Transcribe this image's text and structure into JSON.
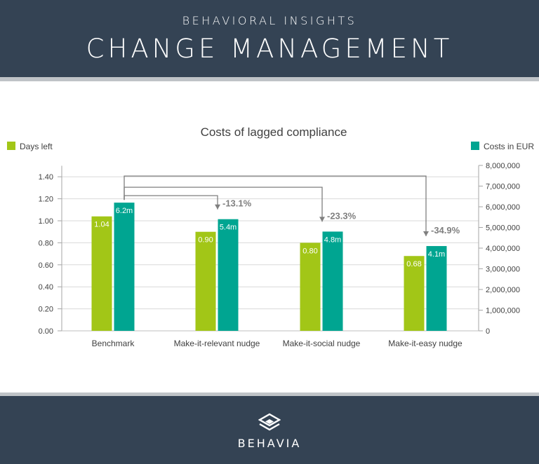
{
  "header": {
    "subtitle": "BEHAVIORAL INSIGHTS",
    "title": "CHANGE MANAGEMENT"
  },
  "footer": {
    "brand": "BEHAVIA"
  },
  "colors": {
    "days": "#a2c617",
    "costs": "#00a591",
    "bar_label": "#ffffff",
    "bracket": "#7f7f7f",
    "header_bg": "#344354"
  },
  "chart_data": {
    "type": "bar",
    "title": "Costs of lagged compliance",
    "categories": [
      "Benchmark",
      "Make-it-relevant nudge",
      "Make-it-social nudge",
      "Make-it-easy nudge"
    ],
    "series": [
      {
        "name": "Days left",
        "axis": "left",
        "values": [
          1.04,
          0.9,
          0.8,
          0.68
        ],
        "labels": [
          "1.04",
          "0.90",
          "0.80",
          "0.68"
        ]
      },
      {
        "name": "Costs in EUR",
        "axis": "right",
        "values": [
          6200000,
          5400000,
          4800000,
          4100000
        ],
        "labels": [
          "6.2m",
          "5.4m",
          "4.8m",
          "4.1m"
        ]
      }
    ],
    "left_axis": {
      "min": 0,
      "max": 1.5,
      "ticks": [
        "0.00",
        "0.20",
        "0.40",
        "0.60",
        "0.80",
        "1.00",
        "1.20",
        "1.40"
      ]
    },
    "right_axis": {
      "min": 0,
      "max": 8000000,
      "ticks": [
        "0",
        "1,000,000",
        "2,000,000",
        "3,000,000",
        "4,000,000",
        "5,000,000",
        "6,000,000",
        "7,000,000",
        "8,000,000"
      ]
    },
    "annotations": [
      "-13.1%",
      "-23.3%",
      "-34.9%"
    ],
    "legend_left": "Days left",
    "legend_right": "Costs in EUR"
  }
}
